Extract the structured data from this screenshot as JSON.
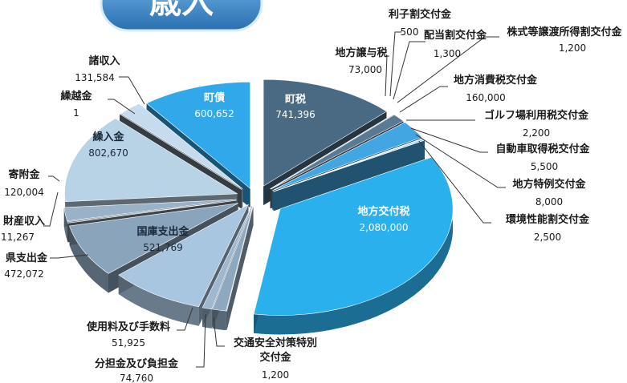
{
  "title": "歳入",
  "chart_data": {
    "type": "pie",
    "style": "exploded-3d",
    "slices": [
      {
        "label": "町税",
        "value": 741396,
        "value_text": "741,396",
        "color": "#4a6a84"
      },
      {
        "label": "利子割交付金",
        "value": 500,
        "value_text": "500",
        "color": "#4a6a84"
      },
      {
        "label": "配当割交付金",
        "value": 1300,
        "value_text": "1,300",
        "color": "#4a6a84"
      },
      {
        "label": "株式等譲渡所得割交付金",
        "value": 1200,
        "value_text": "1,200",
        "color": "#4a6a84"
      },
      {
        "label": "地方譲与税",
        "value": 73000,
        "value_text": "73,000",
        "color": "#5a7a94"
      },
      {
        "label": "地方消費税交付金",
        "value": 160000,
        "value_text": "160,000",
        "color": "#42a6e2"
      },
      {
        "label": "ゴルフ場利用税交付金",
        "value": 2200,
        "value_text": "2,200",
        "color": "#42a6e2"
      },
      {
        "label": "自動車取得税交付金",
        "value": 5500,
        "value_text": "5,500",
        "color": "#42a6e2"
      },
      {
        "label": "地方特例交付金",
        "value": 8000,
        "value_text": "8,000",
        "color": "#42a6e2"
      },
      {
        "label": "環境性能割交付金",
        "value": 2500,
        "value_text": "2,500",
        "color": "#42a6e2"
      },
      {
        "label": "地方交付税",
        "value": 2080000,
        "value_text": "2,080,000",
        "color": "#2bb0ee"
      },
      {
        "label": "交通安全対策特別交付金",
        "value": 1200,
        "value_text": "1,200",
        "color": "#9fb8cf"
      },
      {
        "label": "分担金及び負担金",
        "value": 74760,
        "value_text": "74,760",
        "color": "#8ea8c0"
      },
      {
        "label": "使用料及び手数料",
        "value": 51925,
        "value_text": "51,925",
        "color": "#9fb8cf"
      },
      {
        "label": "国庫支出金",
        "value": 521769,
        "value_text": "521,769",
        "color": "#a9c6e0"
      },
      {
        "label": "県支出金",
        "value": 472072,
        "value_text": "472,072",
        "color": "#8aa4bb"
      },
      {
        "label": "財産収入",
        "value": 11267,
        "value_text": "11,267",
        "color": "#7a8a98"
      },
      {
        "label": "寄附金",
        "value": 120004,
        "value_text": "120,004",
        "color": "#9ab2c8"
      },
      {
        "label": "繰入金",
        "value": 802670,
        "value_text": "802,670",
        "color": "#b8d2e6"
      },
      {
        "label": "繰越金",
        "value": 1,
        "value_text": "1",
        "color": "#6a7a88"
      },
      {
        "label": "諸収入",
        "value": 131584,
        "value_text": "131,584",
        "color": "#c6dcee"
      },
      {
        "label": "町債",
        "value": 600652,
        "value_text": "600,652",
        "color": "#30a8ea"
      }
    ],
    "legend": "none"
  }
}
